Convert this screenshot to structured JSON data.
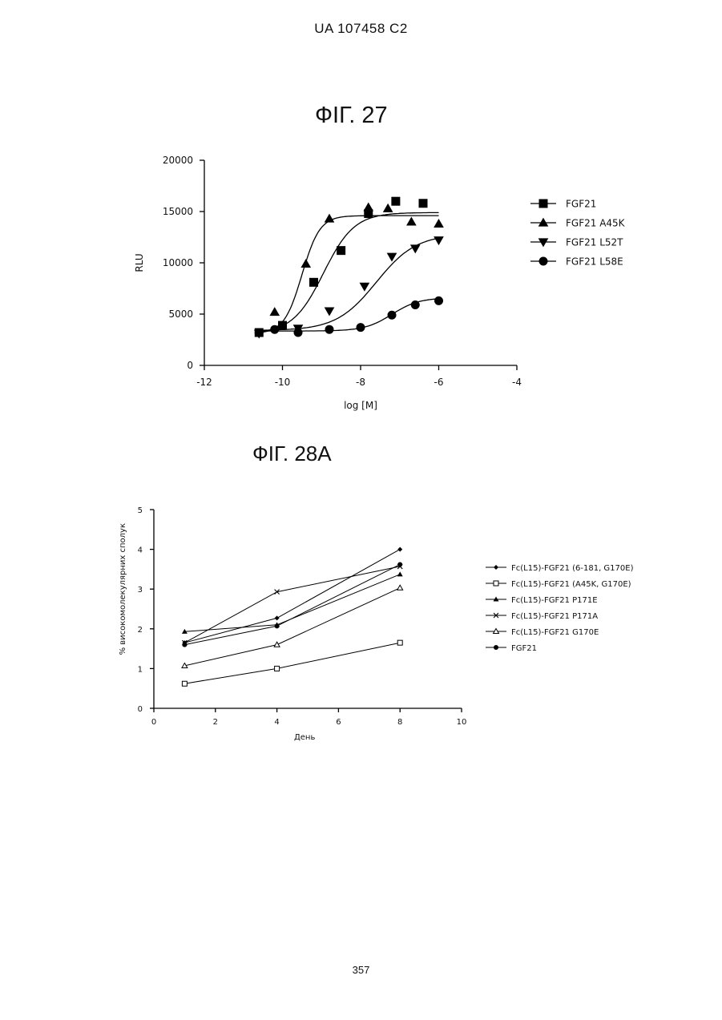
{
  "header": "UA   107458   C2",
  "page_number": "357",
  "chart_data": [
    {
      "type": "scatter",
      "title": "ФІГ. 27",
      "xlabel": "log [M]",
      "ylabel": "RLU",
      "xlim": [
        -12,
        -4
      ],
      "ylim": [
        0,
        20000
      ],
      "xticks": [
        "-12",
        "-10",
        "-8",
        "-6",
        "-4"
      ],
      "yticks": [
        "0",
        "5000",
        "10000",
        "15000",
        "20000"
      ],
      "legend_position": "right",
      "series": [
        {
          "name": "FGF21",
          "marker": "square",
          "x": [
            -10.6,
            -10.0,
            -9.2,
            -8.5,
            -7.8,
            -7.1,
            -6.4
          ],
          "y": [
            3200,
            3900,
            8100,
            11200,
            14800,
            16000,
            15800
          ]
        },
        {
          "name": "FGF21 A45K",
          "marker": "triangle-up",
          "x": [
            -10.2,
            -9.4,
            -8.8,
            -7.8,
            -7.3,
            -6.7,
            -6.0
          ],
          "y": [
            5200,
            9900,
            14300,
            15400,
            15300,
            14000,
            13800
          ]
        },
        {
          "name": "FGF21 L52T",
          "marker": "triangle-down",
          "x": [
            -10.6,
            -9.6,
            -8.8,
            -7.9,
            -7.2,
            -6.6,
            -6.0
          ],
          "y": [
            3100,
            3600,
            5300,
            7700,
            10600,
            11400,
            12200
          ]
        },
        {
          "name": "FGF21 L58E",
          "marker": "circle",
          "x": [
            -10.6,
            -10.2,
            -9.6,
            -8.8,
            -8.0,
            -7.2,
            -6.6,
            -6.0
          ],
          "y": [
            3200,
            3500,
            3200,
            3500,
            3700,
            4900,
            5900,
            6300
          ]
        }
      ]
    },
    {
      "type": "line",
      "title": "ФІГ. 28А",
      "xlabel": "День",
      "ylabel": "% високомолекулярних сполук",
      "xlim": [
        0,
        10
      ],
      "ylim": [
        0,
        5
      ],
      "xticks": [
        "0",
        "2",
        "4",
        "6",
        "8",
        "10"
      ],
      "yticks": [
        "0",
        "1",
        "2",
        "3",
        "4",
        "5"
      ],
      "legend_position": "right",
      "x": [
        1,
        4,
        8
      ],
      "series": [
        {
          "name": "Fc(L15)-FGF21 (6-181, G170E)",
          "marker": "diamond",
          "values": [
            1.65,
            2.27,
            4.0
          ]
        },
        {
          "name": "Fc(L15)-FGF21 (A45K, G170E)",
          "marker": "square-open",
          "values": [
            0.62,
            1.0,
            1.65
          ]
        },
        {
          "name": "Fc(L15)-FGF21 P171E",
          "marker": "triangle",
          "values": [
            1.93,
            2.1,
            3.37
          ]
        },
        {
          "name": "Fc(L15)-FGF21 P171A",
          "marker": "x",
          "values": [
            1.65,
            2.93,
            3.57
          ]
        },
        {
          "name": "Fc(L15)-FGF21 G170E",
          "marker": "triangle-open",
          "values": [
            1.07,
            1.6,
            3.03
          ]
        },
        {
          "name": "FGF21",
          "marker": "circle",
          "values": [
            1.6,
            2.07,
            3.62
          ]
        }
      ]
    }
  ]
}
